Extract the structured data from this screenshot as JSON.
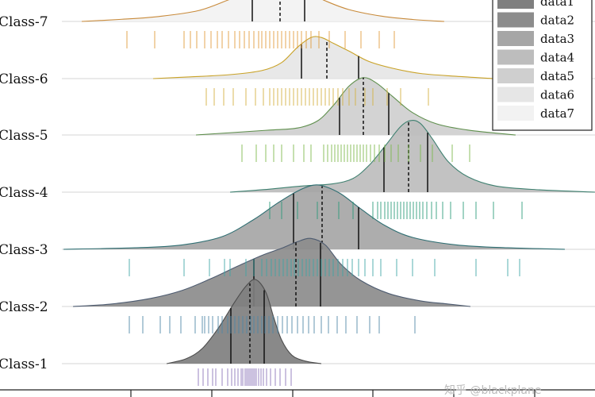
{
  "chart_data": {
    "type": "ridgeline",
    "title": "",
    "xlabel": "",
    "ylabel": "",
    "grid": "horizontal",
    "legend_placement": "top-right",
    "categories": [
      "Class-1",
      "Class-2",
      "Class-3",
      "Class-4",
      "Class-5",
      "Class-6",
      "Class-7"
    ],
    "series": [
      {
        "name": "data1",
        "category": "Class-1",
        "fill": "#7f7f7f",
        "edge": "#4d4d4d",
        "rug": "#8a73b8",
        "range": [
          210,
          405
        ],
        "density": [
          [
            210,
            0.0
          ],
          [
            235,
            0.06
          ],
          [
            255,
            0.18
          ],
          [
            275,
            0.42
          ],
          [
            295,
            0.72
          ],
          [
            310,
            0.92
          ],
          [
            322,
            1.0
          ],
          [
            335,
            0.85
          ],
          [
            345,
            0.55
          ],
          [
            355,
            0.28
          ],
          [
            368,
            0.1
          ],
          [
            385,
            0.03
          ],
          [
            405,
            0.0
          ]
        ],
        "quartiles": [
          291,
          315,
          333
        ],
        "rug_values": [
          250,
          256,
          262,
          268,
          272,
          280,
          287,
          292,
          296,
          300,
          304,
          306,
          309,
          311,
          313,
          315,
          317,
          319,
          321,
          323,
          326,
          329,
          332,
          336,
          341,
          347,
          353,
          360,
          367
        ]
      },
      {
        "name": "data2",
        "category": "Class-2",
        "fill": "#8c8c8c",
        "edge": "#4d5b70",
        "rug": "#4f86a8",
        "range": [
          92,
          593
        ],
        "density": [
          [
            92,
            0.0
          ],
          [
            140,
            0.03
          ],
          [
            190,
            0.1
          ],
          [
            230,
            0.2
          ],
          [
            265,
            0.34
          ],
          [
            300,
            0.5
          ],
          [
            330,
            0.63
          ],
          [
            355,
            0.72
          ],
          [
            375,
            0.8
          ],
          [
            392,
            0.84
          ],
          [
            410,
            0.76
          ],
          [
            430,
            0.52
          ],
          [
            455,
            0.32
          ],
          [
            490,
            0.16
          ],
          [
            530,
            0.07
          ],
          [
            565,
            0.03
          ],
          [
            593,
            0.0
          ]
        ],
        "quartiles": [
          320,
          373,
          404
        ],
        "rug_values": [
          163,
          180,
          202,
          214,
          228,
          246,
          255,
          258,
          263,
          268,
          275,
          280,
          287,
          291,
          296,
          301,
          306,
          311,
          316,
          320,
          325,
          330,
          334,
          339,
          344,
          350,
          356,
          362,
          368,
          375,
          382,
          389,
          396,
          405,
          414,
          425,
          436,
          450,
          466,
          478,
          523
        ]
      },
      {
        "name": "data3",
        "category": "Class-3",
        "fill": "#a6a6a6",
        "edge": "#2e6e72",
        "rug": "#3fa8a8",
        "range": [
          80,
          712
        ],
        "density": [
          [
            80,
            0.0
          ],
          [
            170,
            0.02
          ],
          [
            230,
            0.06
          ],
          [
            280,
            0.17
          ],
          [
            320,
            0.4
          ],
          [
            350,
            0.62
          ],
          [
            375,
            0.78
          ],
          [
            395,
            0.86
          ],
          [
            410,
            0.84
          ],
          [
            430,
            0.74
          ],
          [
            455,
            0.54
          ],
          [
            485,
            0.32
          ],
          [
            520,
            0.16
          ],
          [
            575,
            0.06
          ],
          [
            640,
            0.02
          ],
          [
            712,
            0.0
          ]
        ],
        "quartiles": [
          370,
          406,
          452
        ],
        "rug_values": [
          163,
          232,
          264,
          283,
          290,
          310,
          320,
          330,
          336,
          342,
          347,
          352,
          357,
          362,
          367,
          371,
          376,
          381,
          386,
          390,
          395,
          400,
          405,
          410,
          415,
          420,
          426,
          432,
          438,
          444,
          452,
          460,
          470,
          480,
          500,
          520,
          548,
          600,
          640,
          655
        ]
      },
      {
        "name": "data4",
        "category": "Class-4",
        "fill": "#bdbdbd",
        "edge": "#3f8070",
        "rug": "#2a9a78",
        "range": [
          290,
          750
        ],
        "density": [
          [
            290,
            0.0
          ],
          [
            340,
            0.04
          ],
          [
            380,
            0.08
          ],
          [
            420,
            0.11
          ],
          [
            445,
            0.18
          ],
          [
            465,
            0.35
          ],
          [
            485,
            0.6
          ],
          [
            505,
            0.86
          ],
          [
            518,
            0.94
          ],
          [
            530,
            0.9
          ],
          [
            545,
            0.7
          ],
          [
            565,
            0.4
          ],
          [
            590,
            0.2
          ],
          [
            625,
            0.08
          ],
          [
            680,
            0.03
          ],
          [
            750,
            0.0
          ]
        ],
        "quartiles": [
          484,
          515,
          539
        ],
        "rug_values": [
          340,
          355,
          375,
          400,
          427,
          445,
          470,
          476,
          480,
          485,
          489,
          493,
          497,
          501,
          505,
          509,
          513,
          517,
          521,
          525,
          529,
          533,
          538,
          544,
          550,
          558,
          568,
          584,
          600,
          622,
          658
        ]
      },
      {
        "name": "data5",
        "category": "Class-5",
        "fill": "#cfcfcf",
        "edge": "#5f8f4d",
        "rug": "#7cb84a",
        "range": [
          247,
          650
        ],
        "density": [
          [
            247,
            0.0
          ],
          [
            300,
            0.04
          ],
          [
            340,
            0.07
          ],
          [
            375,
            0.1
          ],
          [
            400,
            0.2
          ],
          [
            420,
            0.42
          ],
          [
            440,
            0.7
          ],
          [
            458,
            0.82
          ],
          [
            475,
            0.74
          ],
          [
            495,
            0.55
          ],
          [
            520,
            0.32
          ],
          [
            550,
            0.16
          ],
          [
            590,
            0.07
          ],
          [
            650,
            0.0
          ]
        ],
        "quartiles": [
          428,
          458,
          490
        ],
        "rug_values": [
          305,
          323,
          335,
          345,
          355,
          370,
          383,
          392,
          408,
          413,
          418,
          422,
          426,
          430,
          434,
          438,
          442,
          446,
          450,
          454,
          458,
          462,
          467,
          472,
          478,
          485,
          493,
          502,
          515,
          530,
          545,
          570,
          592
        ]
      },
      {
        "name": "data6",
        "category": "Class-6",
        "fill": "#e6e6e6",
        "edge": "#c9a227",
        "rug": "#d4b040",
        "range": [
          193,
          622
        ],
        "density": [
          [
            193,
            0.0
          ],
          [
            240,
            0.03
          ],
          [
            290,
            0.07
          ],
          [
            330,
            0.14
          ],
          [
            355,
            0.28
          ],
          [
            375,
            0.55
          ],
          [
            392,
            0.72
          ],
          [
            405,
            0.72
          ],
          [
            420,
            0.62
          ],
          [
            440,
            0.48
          ],
          [
            465,
            0.3
          ],
          [
            495,
            0.18
          ],
          [
            530,
            0.09
          ],
          [
            575,
            0.04
          ],
          [
            622,
            0.0
          ]
        ],
        "quartiles": [
          380,
          412,
          452
        ],
        "rug_values": [
          260,
          270,
          282,
          294,
          310,
          322,
          332,
          340,
          345,
          350,
          355,
          360,
          365,
          370,
          375,
          380,
          385,
          390,
          395,
          400,
          405,
          410,
          415,
          420,
          426,
          432,
          440,
          448,
          460,
          470,
          488,
          505,
          540
        ]
      },
      {
        "name": "data7",
        "category": "Class-7",
        "fill": "#f2f2f2",
        "edge": "#c88a3a",
        "rug": "#e09a3a",
        "range": [
          103,
          560
        ],
        "density": [
          [
            103,
            0.0
          ],
          [
            150,
            0.04
          ],
          [
            200,
            0.1
          ],
          [
            250,
            0.22
          ],
          [
            290,
            0.45
          ],
          [
            320,
            0.62
          ],
          [
            345,
            0.7
          ],
          [
            365,
            0.72
          ],
          [
            385,
            0.62
          ],
          [
            410,
            0.42
          ],
          [
            440,
            0.24
          ],
          [
            480,
            0.11
          ],
          [
            520,
            0.04
          ],
          [
            560,
            0.0
          ]
        ],
        "quartiles": [
          318,
          353,
          384
        ],
        "rug_values": [
          160,
          195,
          232,
          240,
          248,
          258,
          266,
          274,
          280,
          288,
          296,
          302,
          308,
          314,
          320,
          326,
          330,
          335,
          340,
          345,
          350,
          355,
          360,
          365,
          370,
          375,
          380,
          386,
          392,
          402,
          415,
          435,
          455,
          478,
          497
        ]
      }
    ]
  },
  "legend": [
    "data1",
    "data2",
    "data3",
    "data4",
    "data5",
    "data6",
    "data7"
  ],
  "watermark": "知乎 @blackplane"
}
